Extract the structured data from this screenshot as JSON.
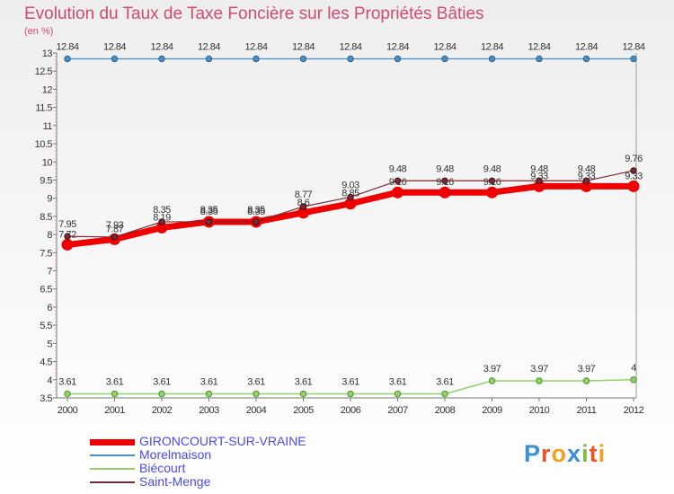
{
  "header": {
    "title": "Evolution du Taux de Taxe Foncière sur les Propriétés Bâties",
    "unit": "(en %)"
  },
  "logo": {
    "text": "Proxiti"
  },
  "chart_data": {
    "type": "line",
    "title": "Evolution du Taux de Taxe Foncière sur les Propriétés Bâties",
    "ylabel": "(en %)",
    "xlabel": "",
    "categories": [
      "2000",
      "2001",
      "2002",
      "2003",
      "2004",
      "2005",
      "2006",
      "2007",
      "2008",
      "2009",
      "2010",
      "2011",
      "2012"
    ],
    "ylim": [
      3.5,
      13
    ],
    "yticks": [
      "3.5",
      "4",
      "4.5",
      "5",
      "5.5",
      "6",
      "6.5",
      "7",
      "7.5",
      "8",
      "8.5",
      "9",
      "9.5",
      "10",
      "10.5",
      "11",
      "11.5",
      "12",
      "12.5",
      "13"
    ],
    "grid": false,
    "legend_position": "bottom-left",
    "series": [
      {
        "name": "GIRONCOURT-SUR-VRAINE",
        "color": "#ee0000",
        "values": [
          7.72,
          7.87,
          8.19,
          8.35,
          8.35,
          8.6,
          8.85,
          9.16,
          9.16,
          9.16,
          9.33,
          9.33,
          9.33
        ],
        "labels": [
          "7.72",
          "7.87",
          "8.19",
          "8.35",
          "8.35",
          "8.6",
          "8.85",
          "9.16",
          "9.16",
          "9.16",
          "9.33",
          "9.33",
          "9.33"
        ]
      },
      {
        "name": "Morelmaison",
        "color": "#4a90c8",
        "values": [
          12.84,
          12.84,
          12.84,
          12.84,
          12.84,
          12.84,
          12.84,
          12.84,
          12.84,
          12.84,
          12.84,
          12.84,
          12.84
        ],
        "labels": [
          "12.84",
          "12.84",
          "12.84",
          "12.84",
          "12.84",
          "12.84",
          "12.84",
          "12.84",
          "12.84",
          "12.84",
          "12.84",
          "12.84",
          "12.84"
        ]
      },
      {
        "name": "Biécourt",
        "color": "#8fd46a",
        "values": [
          3.61,
          3.61,
          3.61,
          3.61,
          3.61,
          3.61,
          3.61,
          3.61,
          3.61,
          3.97,
          3.97,
          3.97,
          4
        ],
        "labels": [
          "3.61",
          "3.61",
          "3.61",
          "3.61",
          "3.61",
          "3.61",
          "3.61",
          "3.61",
          "3.61",
          "3.97",
          "3.97",
          "3.97",
          "4"
        ]
      },
      {
        "name": "Saint-Menge",
        "color": "#7a2a35",
        "values": [
          7.95,
          7.93,
          8.35,
          8.35,
          8.35,
          8.77,
          9.03,
          9.48,
          9.48,
          9.48,
          9.48,
          9.48,
          9.76
        ],
        "labels": [
          "7.95",
          "7.93",
          "8.35",
          "8.35",
          "8.35",
          "8.77",
          "9.03",
          "9.48",
          "9.48",
          "9.48",
          "9.48",
          "9.48",
          "9.76"
        ]
      }
    ]
  }
}
